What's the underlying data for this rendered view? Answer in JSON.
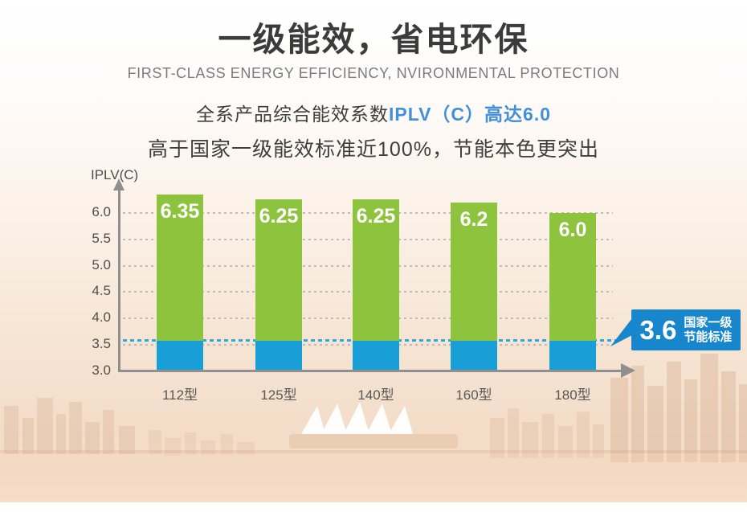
{
  "header": {
    "title": "一级能效，省电环保",
    "subtitle": "FIRST-CLASS ENERGY EFFICIENCY, NVIRONMENTAL PROTECTION"
  },
  "intro": {
    "line1_prefix": "全系产品综合能效系数",
    "line1_highlight": "IPLV（C）高达6.0",
    "line2": "高于国家一级能效标准近100%，节能本色更突出"
  },
  "colors": {
    "bar_green": "#8ec43d",
    "bar_blue": "#189fd8",
    "callout_blue": "#1886cd",
    "reference_dash_blue": "#2aa8e0",
    "highlight_text_blue": "#4190d9",
    "axis_gray": "#8f8f8f"
  },
  "chart_data": {
    "type": "bar",
    "categories": [
      "112型",
      "125型",
      "140型",
      "160型",
      "180型"
    ],
    "values": [
      6.35,
      6.25,
      6.25,
      6.2,
      6.0
    ],
    "value_labels": [
      "6.35",
      "6.25",
      "6.25",
      "6.2",
      "6.0"
    ],
    "title": "",
    "xlabel": "",
    "ylabel": "IPLV(C)",
    "ylim": [
      3.0,
      6.5
    ],
    "yticks": [
      6.0,
      5.5,
      5.0,
      4.5,
      4.0,
      3.5,
      3.0
    ],
    "ytick_labels": [
      "6.0",
      "5.5",
      "5.0",
      "4.5",
      "4.0",
      "3.5",
      "3.0"
    ],
    "grid": "horizontal-dotted",
    "legend": "none",
    "reference_line": {
      "value": 3.6,
      "label": "3.6",
      "caption_line1": "国家一级",
      "caption_line2": "节能标准"
    },
    "segment_colors": {
      "below_reference": "#189fd8",
      "above_reference": "#8ec43d"
    }
  }
}
